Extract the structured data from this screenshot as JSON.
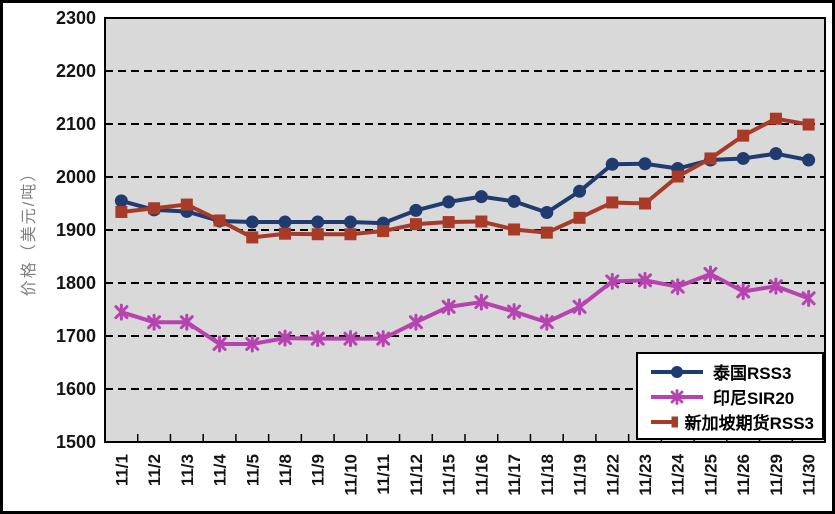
{
  "chart_data": {
    "type": "line",
    "title": "",
    "xlabel": "",
    "ylabel": "价格（美元/吨）",
    "ylim": [
      1500,
      2300
    ],
    "y_ticks": [
      1500,
      1600,
      1700,
      1800,
      1900,
      2000,
      2100,
      2200,
      2300
    ],
    "grid": "horizontal-dashed-black",
    "plot_bg": "#d9d9d9",
    "legend_position": "inside-bottom-right",
    "categories": [
      "11/1",
      "11/2",
      "11/3",
      "11/4",
      "11/5",
      "11/8",
      "11/9",
      "11/10",
      "11/11",
      "11/12",
      "11/15",
      "11/16",
      "11/17",
      "11/18",
      "11/19",
      "11/22",
      "11/23",
      "11/24",
      "11/25",
      "11/26",
      "11/29",
      "11/30"
    ],
    "series": [
      {
        "id": "thailand-rss3",
        "name": "泰国RSS3",
        "marker": "circle",
        "color": "#1f3b70",
        "values": [
          1955,
          1938,
          1935,
          1917,
          1915,
          1915,
          1915,
          1915,
          1913,
          1937,
          1953,
          1963,
          1954,
          1933,
          1973,
          2024,
          2025,
          2016,
          2032,
          2035,
          2044,
          2032
        ]
      },
      {
        "id": "indonesia-sir20",
        "name": "印尼SIR20",
        "marker": "asterisk",
        "color": "#b544b0",
        "values": [
          1745,
          1726,
          1726,
          1685,
          1685,
          1696,
          1695,
          1695,
          1695,
          1726,
          1755,
          1764,
          1746,
          1726,
          1755,
          1803,
          1805,
          1793,
          1817,
          1784,
          1794,
          1771
        ]
      },
      {
        "id": "singapore-futures-rss3",
        "name": "新加坡期货RSS3",
        "marker": "square",
        "color": "#a83a28",
        "values": [
          1934,
          1941,
          1948,
          1918,
          1886,
          1893,
          1892,
          1892,
          1898,
          1911,
          1915,
          1916,
          1901,
          1895,
          1923,
          1952,
          1950,
          2001,
          2035,
          2078,
          2110,
          2099
        ]
      }
    ]
  }
}
